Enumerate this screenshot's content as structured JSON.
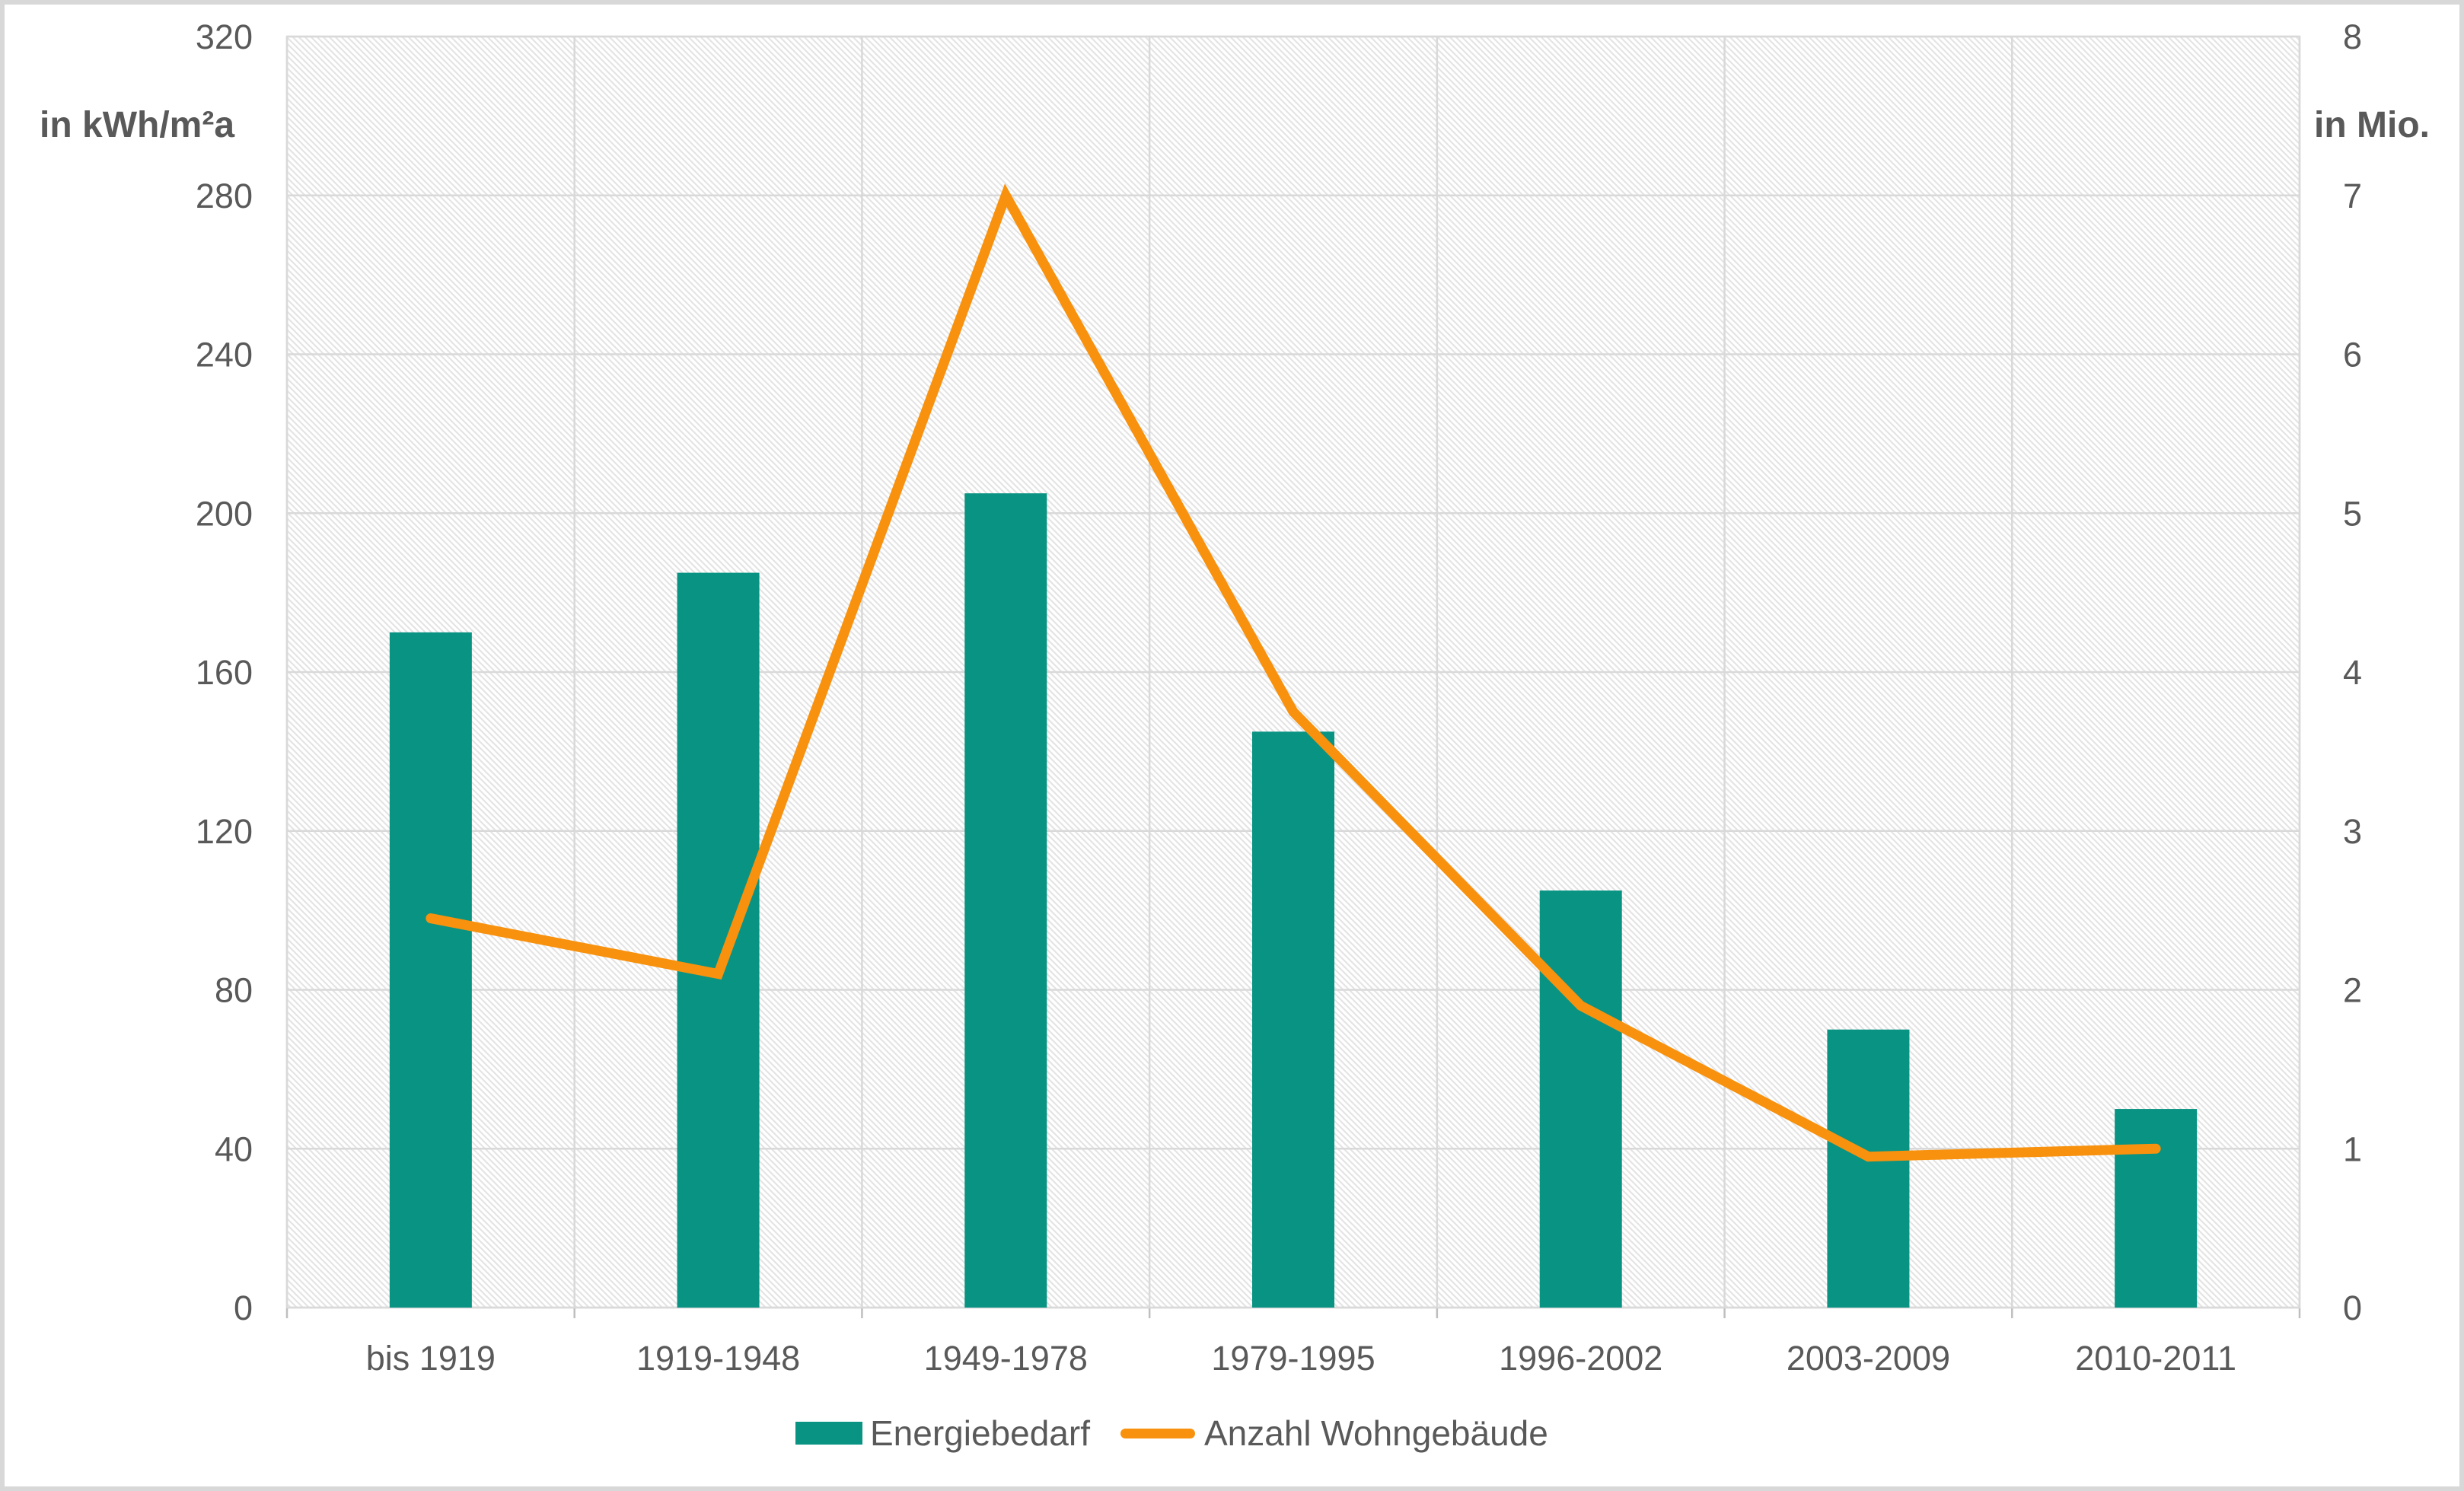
{
  "chart_data": {
    "type": "combo",
    "categories": [
      "bis 1919",
      "1919-1948",
      "1949-1978",
      "1979-1995",
      "1996-2002",
      "2003-2009",
      "2010-2011"
    ],
    "series": [
      {
        "name": "Energiebedarf",
        "type": "bar",
        "axis": "left",
        "values": [
          170,
          185,
          205,
          145,
          105,
          70,
          50
        ]
      },
      {
        "name": "Anzahl Wohngebäude",
        "type": "line",
        "axis": "right",
        "values": [
          2.45,
          2.1,
          7.0,
          3.75,
          1.9,
          0.95,
          1.0
        ]
      }
    ],
    "left_axis": {
      "label": "in kWh/m²a",
      "min": 0,
      "max": 320,
      "step": 40,
      "tick_labels": [
        "0",
        "40",
        "80",
        "120",
        "160",
        "200",
        "240",
        "280",
        "320"
      ]
    },
    "right_axis": {
      "label": "in Mio.",
      "min": 0,
      "max": 8,
      "step": 1,
      "tick_labels": [
        "0",
        "1",
        "2",
        "3",
        "4",
        "5",
        "6",
        "7",
        "8"
      ]
    },
    "grid": true,
    "legend_position": "bottom-center",
    "colors": {
      "bar": "#089383",
      "line": "#F8910D",
      "gridline": "#D9D9D9",
      "plot_border": "#D9D9D9",
      "axis_tick": "#BFBFBF",
      "text": "#595959",
      "hatch": "#E4E4E4",
      "background": "#FFFFFF",
      "frame_border": "#D8D8D8"
    }
  }
}
